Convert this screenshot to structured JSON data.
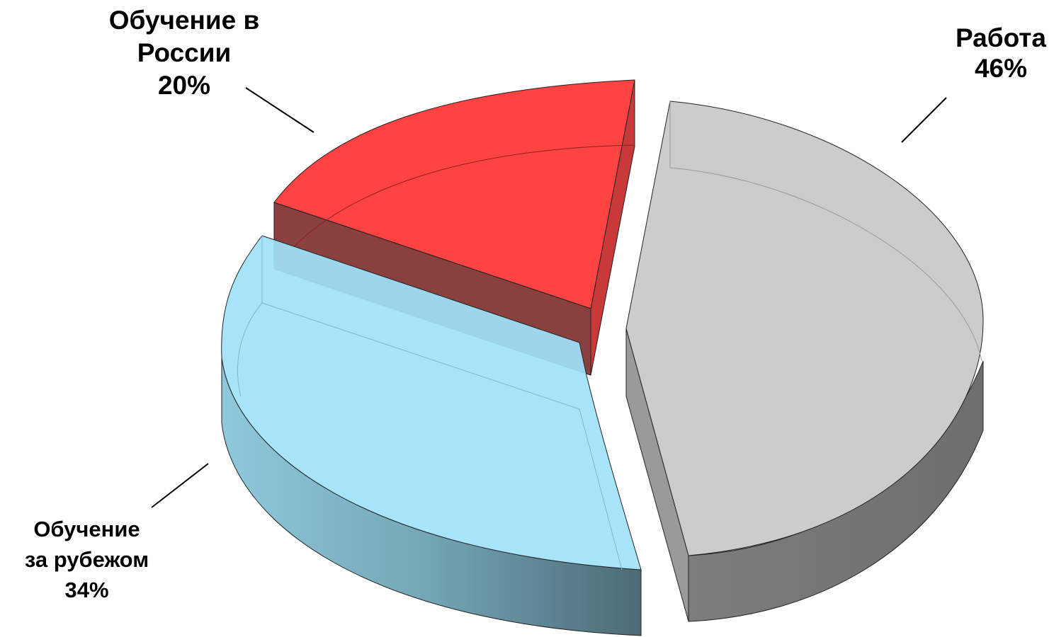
{
  "chart_data": {
    "type": "pie",
    "style": "3d-exploded",
    "slices": [
      {
        "label_lines": [
          "Работа"
        ],
        "pct_label": "46%",
        "value": 46,
        "color": "#cccccc",
        "side_color": "#7a7a7a"
      },
      {
        "label_lines": [
          "Обучение",
          "за рубежом"
        ],
        "pct_label": "34%",
        "value": 34,
        "color": "#a0e2f8",
        "side_color": "#6e9aaa"
      },
      {
        "label_lines": [
          "Обучение в",
          "России"
        ],
        "pct_label": "20%",
        "value": 20,
        "color": "#ff4242",
        "side_color": "#8b4040"
      }
    ]
  }
}
